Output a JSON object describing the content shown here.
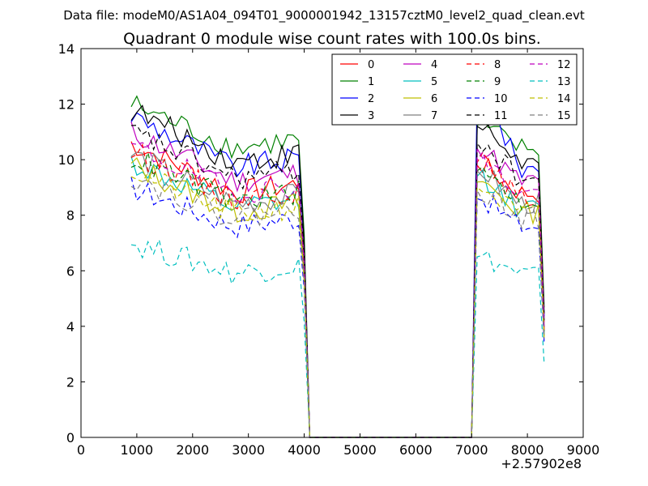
{
  "chart_data": {
    "type": "line",
    "suptitle": "Data file: modeM0/AS1A04_094T01_9000001942_13157cztM0_level2_quad_clean.evt",
    "title": "Quadrant 0 module wise count rates with 100.0s bins.",
    "xlabel": "",
    "ylabel": "",
    "xlim": [
      0,
      9000
    ],
    "ylim": [
      0,
      14
    ],
    "x_offset_label": "+2.57902e8",
    "x_ticks": [
      0,
      1000,
      2000,
      3000,
      4000,
      5000,
      6000,
      7000,
      8000,
      9000
    ],
    "y_ticks": [
      0,
      2,
      4,
      6,
      8,
      10,
      12,
      14
    ],
    "grid": false,
    "legend_position": "top-right",
    "legend_columns": 4,
    "bin_size_s": 100,
    "segments": [
      {
        "x_start": 900,
        "x_end": 3900
      },
      {
        "x_start": 7200,
        "x_end": 8200
      }
    ],
    "gap_x": [
      4000,
      4100,
      7000,
      7100,
      8300
    ],
    "series": [
      {
        "name": "0",
        "color": "#ff0000",
        "dash": "solid",
        "level1": 10.6,
        "level2": 8.8,
        "level2_start": 9.8
      },
      {
        "name": "1",
        "color": "#008000",
        "dash": "solid",
        "level1": 12.0,
        "level2": 10.4,
        "level2_start": 11.2
      },
      {
        "name": "2",
        "color": "#0000ff",
        "dash": "solid",
        "level1": 11.6,
        "level2": 9.7,
        "level2_start": 12.4
      },
      {
        "name": "3",
        "color": "#000000",
        "dash": "solid",
        "level1": 11.8,
        "level2": 9.9,
        "level2_start": 11.2
      },
      {
        "name": "4",
        "color": "#bf00bf",
        "dash": "solid",
        "level1": 11.0,
        "level2": 9.2,
        "level2_start": 10.4
      },
      {
        "name": "5",
        "color": "#00bfbf",
        "dash": "solid",
        "level1": 9.9,
        "level2": 8.2,
        "level2_start": 9.4
      },
      {
        "name": "6",
        "color": "#bfbf00",
        "dash": "solid",
        "level1": 9.8,
        "level2": 8.1,
        "level2_start": 9.2
      },
      {
        "name": "7",
        "color": "#808080",
        "dash": "solid",
        "level1": 10.2,
        "level2": 8.4,
        "level2_start": 9.6
      },
      {
        "name": "8",
        "color": "#ff0000",
        "dash": "dashed",
        "level1": 10.3,
        "level2": 8.6,
        "level2_start": 9.9
      },
      {
        "name": "9",
        "color": "#008000",
        "dash": "dashed",
        "level1": 10.1,
        "level2": 8.5,
        "level2_start": 9.6
      },
      {
        "name": "10",
        "color": "#0000ff",
        "dash": "dashed",
        "level1": 9.0,
        "level2": 7.6,
        "level2_start": 8.6
      },
      {
        "name": "11",
        "color": "#000000",
        "dash": "dashed",
        "level1": 11.0,
        "level2": 9.3,
        "level2_start": 10.6
      },
      {
        "name": "12",
        "color": "#bf00bf",
        "dash": "dashed",
        "level1": 10.5,
        "level2": 8.8,
        "level2_start": 10.0
      },
      {
        "name": "13",
        "color": "#00bfbf",
        "dash": "dashed",
        "level1": 7.0,
        "level2": 5.9,
        "level2_start": 6.5
      },
      {
        "name": "14",
        "color": "#bfbf00",
        "dash": "dashed",
        "level1": 9.6,
        "level2": 8.0,
        "level2_start": 9.0
      },
      {
        "name": "15",
        "color": "#808080",
        "dash": "dashed",
        "level1": 9.4,
        "level2": 7.9,
        "level2_start": 8.9
      }
    ]
  }
}
